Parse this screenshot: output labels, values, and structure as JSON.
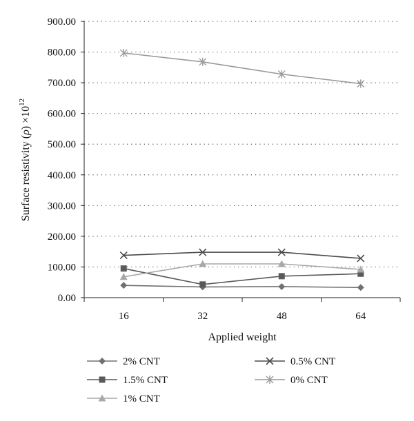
{
  "chart_data": {
    "type": "line",
    "title": "",
    "xlabel": "Applied weight",
    "ylabel_main": "Surface resistivity (",
    "ylabel_symbol": "ρ",
    "ylabel_close": ") ×10",
    "ylabel_exponent": "12",
    "categories": [
      "16",
      "32",
      "48",
      "64"
    ],
    "y_ticks": [
      "0.00",
      "100.00",
      "200.00",
      "300.00",
      "400.00",
      "500.00",
      "600.00",
      "700.00",
      "800.00",
      "900.00"
    ],
    "ylim": [
      0,
      900
    ],
    "grid": "horizontal-dotted",
    "legend_position": "bottom",
    "series": [
      {
        "name": "2% CNT",
        "marker": "diamond",
        "color": "#707070",
        "values": [
          40,
          35,
          36,
          33
        ]
      },
      {
        "name": "1.5% CNT",
        "marker": "square",
        "color": "#5a5a5a",
        "values": [
          95,
          43,
          70,
          78
        ]
      },
      {
        "name": "1% CNT",
        "marker": "triangle",
        "color": "#a8a8a8",
        "values": [
          68,
          110,
          110,
          92
        ]
      },
      {
        "name": "0.5% CNT",
        "marker": "x",
        "color": "#4a4a4a",
        "values": [
          138,
          148,
          148,
          128
        ]
      },
      {
        "name": "0% CNT",
        "marker": "asterisk",
        "color": "#9a9a9a",
        "values": [
          797,
          768,
          728,
          697
        ]
      }
    ]
  }
}
